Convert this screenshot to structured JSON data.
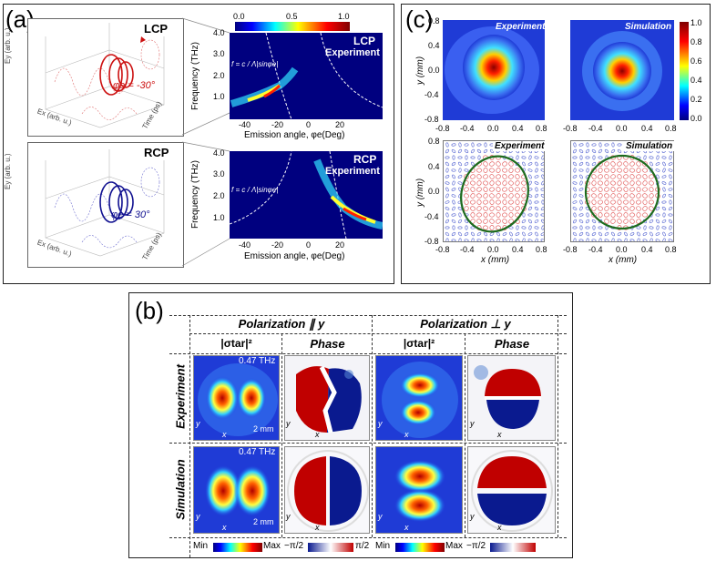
{
  "panel_labels": {
    "a": "(a)",
    "b": "(b)",
    "c": "(c)"
  },
  "panel_a": {
    "colorbar_ticks": [
      "0.0",
      "0.5",
      "1.0"
    ],
    "lcp_box": {
      "title": "LCP",
      "phi_label": "φe = -30°",
      "ax_ey": "Ey (arb. u.)",
      "ax_ex": "Ex (arb. u.)",
      "ax_time": "Time (ps)",
      "ticks_ex": [
        "100",
        "0",
        "-100"
      ],
      "ticks_time": [
        "-5",
        "0",
        "5",
        "10"
      ]
    },
    "rcp_box": {
      "title": "RCP",
      "phi_label": "φe = 30°",
      "ax_ey": "Ey (arb. u.)",
      "ax_ex": "Ex (arb. u.)",
      "ax_time": "Time (ps)",
      "ticks_ex": [
        "100",
        "0",
        "-100"
      ],
      "ticks_time": [
        "-5",
        "0",
        "5",
        "10"
      ]
    },
    "plot_top": {
      "title": "LCP",
      "subtitle": "Experiment",
      "formula": "f = c / Λ|sinφe|",
      "ylabel": "Frequency (THz)",
      "yticks": [
        "4.0",
        "3.0",
        "2.0",
        "1.0"
      ],
      "xticks": [
        "-40",
        "-20",
        "0",
        "20"
      ],
      "xlabel": "Emission angle, φe(Deg)"
    },
    "plot_bottom": {
      "title": "RCP",
      "subtitle": "Experiment",
      "formula": "f = c / Λ|sinφe|",
      "ylabel": "Frequency (THz)",
      "yticks": [
        "4.0",
        "3.0",
        "2.0",
        "1.0"
      ],
      "xticks": [
        "-40",
        "-20",
        "0",
        "20"
      ],
      "xlabel": "Emission angle, φe(Deg)"
    }
  },
  "panel_c": {
    "top_left_title": "Experiment",
    "top_right_title": "Simulation",
    "bottom_left_title": "Experiment",
    "bottom_right_title": "Simulation",
    "colorbar_ticks": [
      "1.0",
      "0.8",
      "0.6",
      "0.4",
      "0.2",
      "0.0"
    ],
    "yticks": [
      "0.8",
      "0.4",
      "0.0",
      "-0.4",
      "-0.8"
    ],
    "xticks": [
      "-0.8",
      "-0.4",
      "0.0",
      "0.4",
      "0.8"
    ],
    "ylabel": "y (mm)",
    "xlabel": "x (mm)"
  },
  "panel_b": {
    "header_left": "Polarization ∥ y",
    "header_right": "Polarization ⊥ y",
    "col_sigma": "|σtar|²",
    "col_phase": "Phase",
    "row_experiment": "Experiment",
    "row_simulation": "Simulation",
    "freq_label": "0.47 THz",
    "scale_label": "2 mm",
    "axis_x": "x",
    "axis_y": "y",
    "bar_min": "Min",
    "bar_max": "Max",
    "bar_neg": "−π/2",
    "bar_pos": "π/2"
  }
}
